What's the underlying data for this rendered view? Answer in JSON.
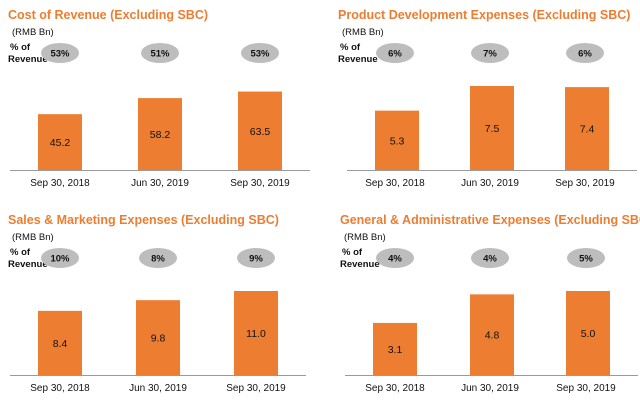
{
  "colors": {
    "accent": "#ED7D31",
    "pill": "#BDBDBD"
  },
  "chart_data": [
    {
      "type": "bar",
      "title": "Cost of Revenue (Excluding SBC)",
      "ylabel": "(RMB Bn)",
      "pct_label": [
        "% of",
        "Revenue"
      ],
      "categories": [
        "Sep 30, 2018",
        "Jun 30, 2019",
        "Sep 30, 2019"
      ],
      "values": [
        45.2,
        58.2,
        63.5
      ],
      "value_labels": [
        "45.2",
        "58.2",
        "63.5"
      ],
      "pct_of_revenue": [
        "53%",
        "51%",
        "53%"
      ],
      "ylim": [
        0,
        68
      ]
    },
    {
      "type": "bar",
      "title": "Product Development Expenses (Excluding SBC)",
      "ylabel": "(RMB Bn)",
      "pct_label": [
        "% of",
        "Revenue"
      ],
      "categories": [
        "Sep 30, 2018",
        "Jun 30, 2019",
        "Sep 30, 2019"
      ],
      "values": [
        5.3,
        7.5,
        7.4
      ],
      "value_labels": [
        "5.3",
        "7.5",
        "7.4"
      ],
      "pct_of_revenue": [
        "6%",
        "7%",
        "6%"
      ],
      "ylim": [
        0,
        7.5
      ]
    },
    {
      "type": "bar",
      "title": "Sales & Marketing Expenses (Excluding SBC)",
      "ylabel": "(RMB Bn)",
      "pct_label": [
        "% of",
        "Revenue"
      ],
      "categories": [
        "Sep 30, 2018",
        "Jun 30, 2019",
        "Sep 30, 2019"
      ],
      "values": [
        8.4,
        9.8,
        11.0
      ],
      "value_labels": [
        "8.4",
        "9.8",
        "11.0"
      ],
      "pct_of_revenue": [
        "10%",
        "8%",
        "9%"
      ],
      "ylim": [
        0,
        11
      ]
    },
    {
      "type": "bar",
      "title": "General & Administrative Expenses (Excluding SBC)",
      "ylabel": "(RMB Bn)",
      "pct_label": [
        "% of",
        "Revenue"
      ],
      "categories": [
        "Sep 30, 2018",
        "Jun 30, 2019",
        "Sep 30, 2019"
      ],
      "values": [
        3.1,
        4.8,
        5.0
      ],
      "value_labels": [
        "3.1",
        "4.8",
        "5.0"
      ],
      "pct_of_revenue": [
        "4%",
        "4%",
        "5%"
      ],
      "ylim": [
        0,
        5
      ]
    }
  ]
}
